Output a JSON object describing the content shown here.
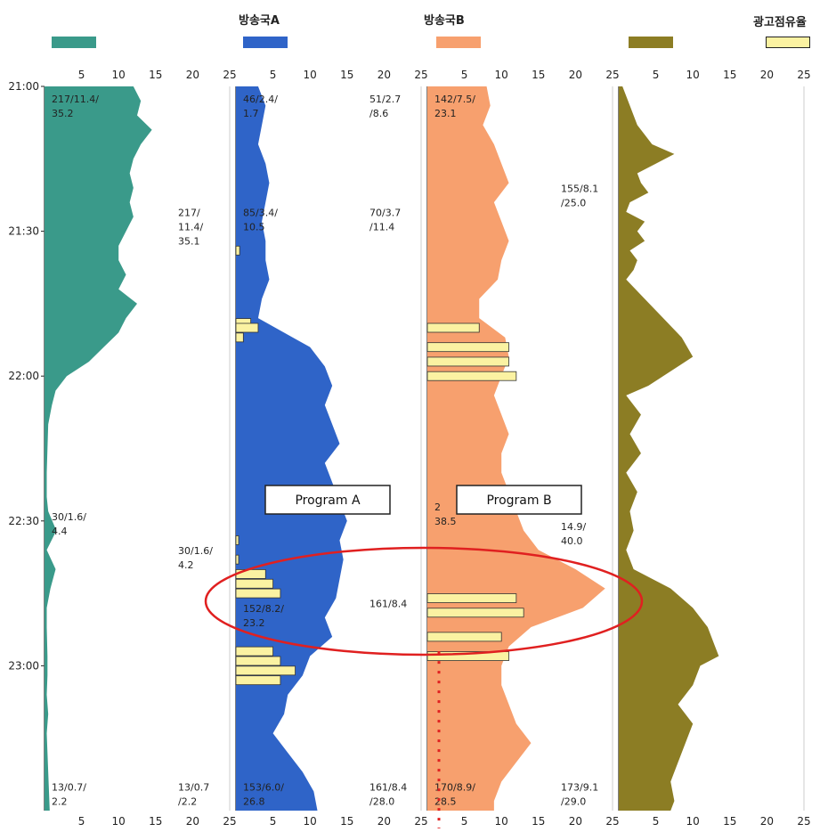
{
  "legend": {
    "items": [
      {
        "label": "",
        "color": "#3a9a8a"
      },
      {
        "label": "방송국A",
        "color": "#2f64c8"
      },
      {
        "label": "방송국B",
        "color": "#f7a06e"
      },
      {
        "label": "",
        "color": "#8c7d24"
      },
      {
        "label": "광고점유율",
        "color": "#fbf2a2"
      }
    ]
  },
  "chart_data": {
    "type": "area",
    "orientation": "vertical-time",
    "x_ticks": [
      "5",
      "10",
      "15",
      "20",
      "25"
    ],
    "xlim": [
      0,
      25
    ],
    "time_ticks": [
      "21:00",
      "21:30",
      "22:00",
      "22:30",
      "23:00"
    ],
    "time_range": [
      "21:00",
      "23:30"
    ],
    "panels": [
      {
        "name": "",
        "color": "#3a9a8a",
        "rating": [
          [
            0,
            12
          ],
          [
            3,
            13
          ],
          [
            6,
            12.5
          ],
          [
            9,
            14.5
          ],
          [
            12,
            13
          ],
          [
            15,
            12
          ],
          [
            18,
            11.5
          ],
          [
            21,
            12
          ],
          [
            24,
            11.5
          ],
          [
            27,
            12
          ],
          [
            30,
            11
          ],
          [
            33,
            10
          ],
          [
            36,
            10
          ],
          [
            39,
            11
          ],
          [
            42,
            10
          ],
          [
            45,
            12.5
          ],
          [
            48,
            11
          ],
          [
            51,
            10
          ],
          [
            54,
            8
          ],
          [
            57,
            6
          ],
          [
            60,
            3
          ],
          [
            63,
            1.5
          ],
          [
            66,
            1
          ],
          [
            70,
            0.5
          ],
          [
            75,
            0.4
          ],
          [
            80,
            0.3
          ],
          [
            85,
            0.3
          ],
          [
            88,
            0.5
          ],
          [
            92,
            1.6
          ],
          [
            96,
            0.3
          ],
          [
            100,
            1.5
          ],
          [
            104,
            0.8
          ],
          [
            108,
            0.3
          ],
          [
            112,
            0.3
          ],
          [
            118,
            0.4
          ],
          [
            122,
            0.4
          ],
          [
            126,
            0.3
          ],
          [
            130,
            0.5
          ],
          [
            134,
            0.3
          ],
          [
            138,
            0.4
          ],
          [
            142,
            0.5
          ],
          [
            146,
            0.6
          ],
          [
            150,
            0.7
          ]
        ],
        "annotations": [
          {
            "text": [
              "217/11.4/",
              "35.2"
            ],
            "col": "left",
            "t": 1.5
          },
          {
            "text": [
              "217/",
              "11.4/",
              "35.1"
            ],
            "col": "right",
            "t": 25
          },
          {
            "text": [
              "30/1.6/",
              "4.4"
            ],
            "col": "left",
            "t": 88
          },
          {
            "text": [
              "30/1.6/",
              "4.2"
            ],
            "col": "right",
            "t": 95
          },
          {
            "text": [
              "13/0.7/",
              "2.2"
            ],
            "col": "left",
            "t": 144
          },
          {
            "text": [
              "13/0.7",
              "/2.2"
            ],
            "col": "right",
            "t": 144
          }
        ]
      },
      {
        "name": "방송국A",
        "color": "#2f64c8",
        "rating": [
          [
            0,
            3
          ],
          [
            4,
            4
          ],
          [
            8,
            3.5
          ],
          [
            12,
            3
          ],
          [
            16,
            4
          ],
          [
            20,
            4.5
          ],
          [
            24,
            4
          ],
          [
            28,
            3.5
          ],
          [
            32,
            4
          ],
          [
            36,
            4
          ],
          [
            40,
            4.5
          ],
          [
            44,
            3.5
          ],
          [
            48,
            3
          ],
          [
            54,
            10
          ],
          [
            58,
            12
          ],
          [
            62,
            13
          ],
          [
            66,
            12
          ],
          [
            70,
            13
          ],
          [
            74,
            14
          ],
          [
            78,
            12
          ],
          [
            82,
            13
          ],
          [
            86,
            14
          ],
          [
            90,
            15
          ],
          [
            94,
            14
          ],
          [
            98,
            14.5
          ],
          [
            102,
            14
          ],
          [
            106,
            13.5
          ],
          [
            110,
            12
          ],
          [
            114,
            13
          ],
          [
            118,
            10
          ],
          [
            122,
            9
          ],
          [
            126,
            7
          ],
          [
            130,
            6.5
          ],
          [
            134,
            5
          ],
          [
            138,
            7
          ],
          [
            142,
            9
          ],
          [
            146,
            10.5
          ],
          [
            150,
            11
          ]
        ],
        "ad": [
          [
            34,
            0.5
          ],
          [
            49,
            2
          ],
          [
            50,
            3
          ],
          [
            52,
            1
          ],
          [
            94,
            0
          ],
          [
            98,
            0
          ],
          [
            101,
            4
          ],
          [
            103,
            5
          ],
          [
            105,
            6
          ],
          [
            117,
            5
          ],
          [
            119,
            6
          ],
          [
            121,
            8
          ],
          [
            123,
            6
          ]
        ],
        "annotations": [
          {
            "text": [
              "46/2.4/",
              "1.7"
            ],
            "col": "left",
            "t": 1.5
          },
          {
            "text": [
              "51/2.7",
              "/8.6"
            ],
            "col": "right",
            "t": 1.5
          },
          {
            "text": [
              "85/3.4/",
              "10.5"
            ],
            "col": "left",
            "t": 25
          },
          {
            "text": [
              "70/3.7",
              "/11.4"
            ],
            "col": "right",
            "t": 25
          },
          {
            "text": [
              "152/8.2/",
              "23.2"
            ],
            "col": "left",
            "t": 107
          },
          {
            "text": [
              "161/8.4"
            ],
            "col": "right",
            "t": 106
          },
          {
            "text": [
              "153/6.0/",
              "26.8"
            ],
            "col": "left",
            "t": 144
          },
          {
            "text": [
              "161/8.4",
              "/28.0"
            ],
            "col": "right",
            "t": 144
          }
        ]
      },
      {
        "name": "방송국B",
        "color": "#f7a06e",
        "rating": [
          [
            0,
            8
          ],
          [
            4,
            8.5
          ],
          [
            8,
            7.5
          ],
          [
            12,
            9
          ],
          [
            16,
            10
          ],
          [
            20,
            11
          ],
          [
            24,
            9
          ],
          [
            28,
            10
          ],
          [
            32,
            11
          ],
          [
            36,
            10
          ],
          [
            40,
            9.5
          ],
          [
            44,
            7
          ],
          [
            48,
            7
          ],
          [
            52,
            10.5
          ],
          [
            56,
            11
          ],
          [
            60,
            10
          ],
          [
            64,
            9
          ],
          [
            68,
            10
          ],
          [
            72,
            11
          ],
          [
            76,
            10
          ],
          [
            80,
            10
          ],
          [
            84,
            11
          ],
          [
            88,
            12
          ],
          [
            92,
            13
          ],
          [
            96,
            15
          ],
          [
            100,
            20
          ],
          [
            104,
            24
          ],
          [
            108,
            21
          ],
          [
            112,
            14
          ],
          [
            116,
            11
          ],
          [
            120,
            10
          ],
          [
            124,
            10
          ],
          [
            128,
            11
          ],
          [
            132,
            12
          ],
          [
            136,
            14
          ],
          [
            140,
            12
          ],
          [
            144,
            10
          ],
          [
            148,
            9
          ],
          [
            150,
            9
          ]
        ],
        "ad": [
          [
            50,
            7
          ],
          [
            54,
            11
          ],
          [
            57,
            11
          ],
          [
            60,
            12
          ],
          [
            106,
            12
          ],
          [
            109,
            13
          ],
          [
            114,
            10
          ],
          [
            118,
            11
          ]
        ],
        "annotations": [
          {
            "text": [
              "142/7.5/",
              "23.1"
            ],
            "col": "left",
            "t": 1.5
          },
          {
            "text": [
              "155/8.1",
              "/25.0"
            ],
            "col": "right",
            "t": 20
          },
          {
            "text": [
              "2",
              "38.5"
            ],
            "col": "left",
            "t": 86
          },
          {
            "text": [
              "14.9/",
              "40.0"
            ],
            "col": "right",
            "t": 90
          },
          {
            "text": [
              "170/8.9/",
              "28.5"
            ],
            "col": "left",
            "t": 144
          },
          {
            "text": [
              "173/9.1",
              "/29.0"
            ],
            "col": "right",
            "t": 144
          }
        ]
      },
      {
        "name": "",
        "color": "#8c7d24",
        "rating": [
          [
            0,
            0.5
          ],
          [
            4,
            1.5
          ],
          [
            8,
            2.5
          ],
          [
            12,
            4.5
          ],
          [
            14,
            7.5
          ],
          [
            16,
            5
          ],
          [
            18,
            2.5
          ],
          [
            20,
            3
          ],
          [
            22,
            4
          ],
          [
            24,
            1.5
          ],
          [
            26,
            1
          ],
          [
            28,
            3.5
          ],
          [
            30,
            2.5
          ],
          [
            32,
            3.5
          ],
          [
            34,
            1.5
          ],
          [
            36,
            2.5
          ],
          [
            38,
            2
          ],
          [
            40,
            1
          ],
          [
            44,
            3.5
          ],
          [
            48,
            6
          ],
          [
            52,
            8.5
          ],
          [
            56,
            10
          ],
          [
            58,
            8
          ],
          [
            62,
            4
          ],
          [
            64,
            1
          ],
          [
            66,
            2
          ],
          [
            68,
            3
          ],
          [
            72,
            1.5
          ],
          [
            76,
            3
          ],
          [
            80,
            1
          ],
          [
            84,
            2.5
          ],
          [
            88,
            1.5
          ],
          [
            92,
            2
          ],
          [
            96,
            1
          ],
          [
            100,
            2
          ],
          [
            104,
            7
          ],
          [
            108,
            10
          ],
          [
            112,
            12
          ],
          [
            116,
            13
          ],
          [
            118,
            13.5
          ],
          [
            120,
            11
          ],
          [
            124,
            10
          ],
          [
            128,
            8
          ],
          [
            132,
            10
          ],
          [
            136,
            9
          ],
          [
            140,
            8
          ],
          [
            144,
            7
          ],
          [
            148,
            7.5
          ],
          [
            150,
            7
          ]
        ],
        "annotations": []
      }
    ],
    "callouts": [
      {
        "label": "Program  A",
        "panel": 1
      },
      {
        "label": "Program  B",
        "panel": 2
      }
    ],
    "highlight": {
      "shape": "ellipse",
      "color": "#e02020",
      "t_center": 107
    }
  }
}
